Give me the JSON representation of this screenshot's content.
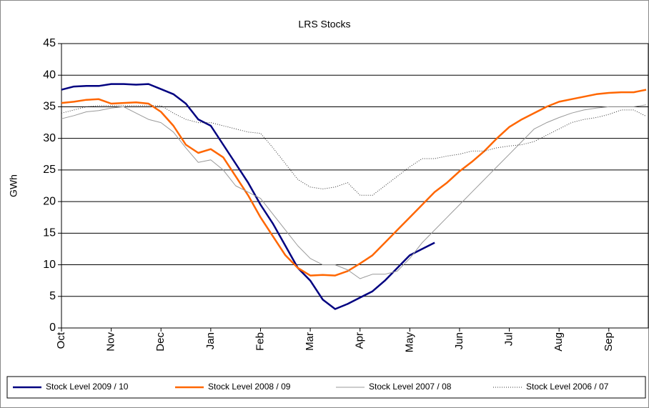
{
  "chart_data": {
    "type": "line",
    "title": "LRS Stocks",
    "y_label": "GWh",
    "categories": [
      "Oct",
      null,
      null,
      null,
      "Nov",
      null,
      null,
      null,
      "Dec",
      null,
      null,
      null,
      "Jan",
      null,
      null,
      null,
      "Feb",
      null,
      null,
      null,
      "Mar",
      null,
      null,
      null,
      "Apr",
      null,
      null,
      null,
      "May",
      null,
      null,
      null,
      "Jun",
      null,
      null,
      null,
      "Jul",
      null,
      null,
      null,
      "Aug",
      null,
      null,
      null,
      "Sep",
      null,
      null,
      null
    ],
    "ylim": [
      0,
      45
    ],
    "yticks": [
      0,
      5,
      10,
      15,
      20,
      25,
      30,
      35,
      40,
      45
    ],
    "grid": true,
    "legend": "bottom",
    "series": [
      {
        "name": "Stock Level 2009 / 10",
        "color": "#000080",
        "width": 2.5,
        "dash": "none",
        "values": [
          37.7,
          38.2,
          38.3,
          38.3,
          38.6,
          38.6,
          38.5,
          38.6,
          37.8,
          37.0,
          35.5,
          33.0,
          32.0,
          29.0,
          26.0,
          23.0,
          19.5,
          16.5,
          13.0,
          9.5,
          7.5,
          4.5,
          3.0,
          3.8,
          4.8,
          5.8,
          7.5,
          9.5,
          11.5,
          12.5,
          13.5,
          null,
          null,
          null,
          null,
          null,
          null,
          null,
          null,
          null,
          null,
          null,
          null,
          null,
          null,
          null,
          null,
          null
        ]
      },
      {
        "name": "Stock Level 2008 / 09",
        "color": "#ff6600",
        "width": 2.5,
        "dash": "none",
        "values": [
          35.6,
          35.8,
          36.1,
          36.2,
          35.5,
          35.6,
          35.7,
          35.5,
          34.2,
          32.0,
          29.0,
          27.7,
          28.3,
          27.0,
          24.0,
          21.0,
          17.5,
          14.5,
          11.5,
          9.5,
          8.3,
          8.4,
          8.3,
          9.0,
          10.2,
          11.5,
          13.5,
          15.5,
          17.5,
          19.5,
          21.5,
          23.0,
          24.8,
          26.3,
          28.0,
          30.0,
          31.8,
          33.0,
          34.0,
          35.0,
          35.8,
          36.2,
          36.6,
          37.0,
          37.2,
          37.3,
          37.3,
          37.7
        ]
      },
      {
        "name": "Stock Level 2007 / 08",
        "color": "#999999",
        "width": 1,
        "dash": "none",
        "values": [
          33.1,
          33.6,
          34.2,
          34.4,
          34.8,
          35.0,
          34.0,
          33.0,
          32.5,
          31.0,
          28.5,
          26.2,
          26.6,
          25.0,
          22.5,
          21.5,
          20.5,
          18.0,
          15.5,
          13.0,
          11.0,
          10.0,
          10.0,
          9.2,
          7.8,
          8.5,
          8.5,
          9.0,
          11.0,
          13.5,
          15.5,
          17.5,
          19.5,
          21.5,
          23.5,
          25.5,
          27.5,
          29.5,
          31.5,
          32.5,
          33.3,
          34.0,
          34.5,
          34.8,
          35.0,
          35.0,
          35.0,
          35.3
        ]
      },
      {
        "name": "Stock Level 2006 / 07",
        "color": "#333333",
        "width": 1,
        "dash": "1 2",
        "values": [
          34.0,
          34.5,
          35.0,
          35.2,
          35.2,
          35.2,
          35.2,
          35.2,
          35.2,
          34.0,
          33.0,
          32.5,
          32.5,
          32.0,
          31.5,
          31.0,
          30.8,
          28.5,
          26.0,
          23.5,
          22.3,
          22.0,
          22.3,
          23.0,
          21.0,
          21.0,
          22.5,
          24.0,
          25.5,
          26.8,
          26.8,
          27.2,
          27.5,
          28.0,
          28.0,
          28.5,
          28.8,
          29.0,
          29.5,
          30.5,
          31.5,
          32.5,
          33.0,
          33.3,
          33.8,
          34.5,
          34.5,
          33.5
        ]
      }
    ]
  }
}
